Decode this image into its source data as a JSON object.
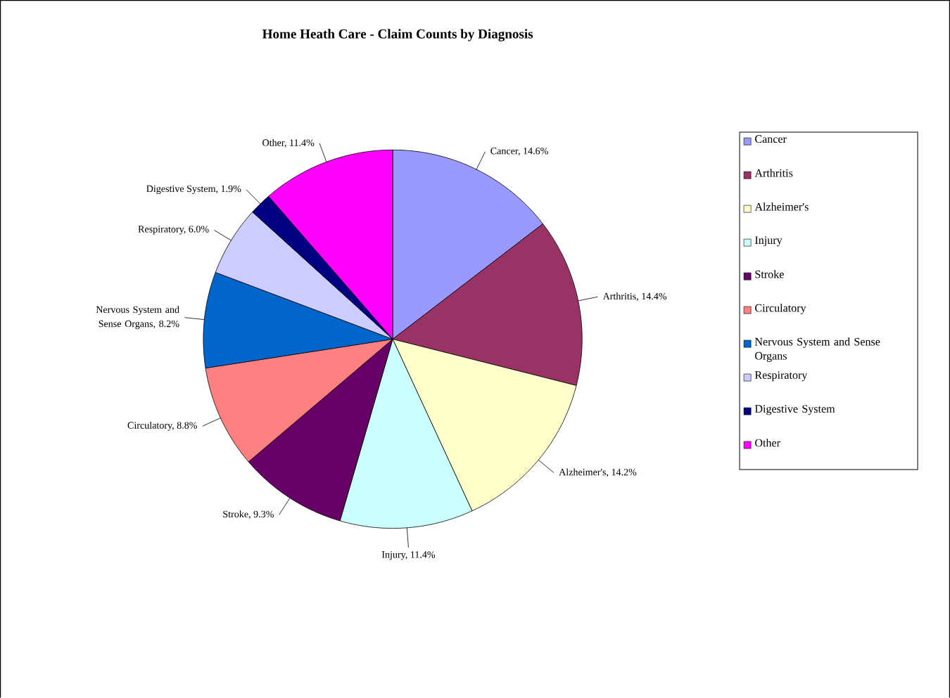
{
  "chart_data": {
    "type": "pie",
    "title": "Home Heath Care - Claim Counts by Diagnosis",
    "categories": [
      "Cancer",
      "Arthritis",
      "Alzheimer's",
      "Injury",
      "Stroke",
      "Circulatory",
      "Nervous System and Sense Organs",
      "Respiratory",
      "Digestive System",
      "Other"
    ],
    "values": [
      14.6,
      14.4,
      14.2,
      11.4,
      9.3,
      8.8,
      8.2,
      6.0,
      1.9,
      11.4
    ],
    "value_labels": [
      "Cancer, 14.6%",
      "Arthritis, 14.4%",
      "Alzheimer's, 14.2%",
      "Injury, 11.4%",
      "Stroke, 9.3%",
      "Circulatory,  8.8%",
      "Nervous System and Sense Organs, 8.2%",
      "Respiratory, 6.0%",
      "Digestive System, 1.9%",
      "Other, 11.4%"
    ],
    "colors": [
      "#9999ff",
      "#993366",
      "#ffffcc",
      "#ccffff",
      "#660066",
      "#ff8080",
      "#0066cc",
      "#ccccff",
      "#000080",
      "#ff00ff"
    ],
    "legend": "right"
  }
}
